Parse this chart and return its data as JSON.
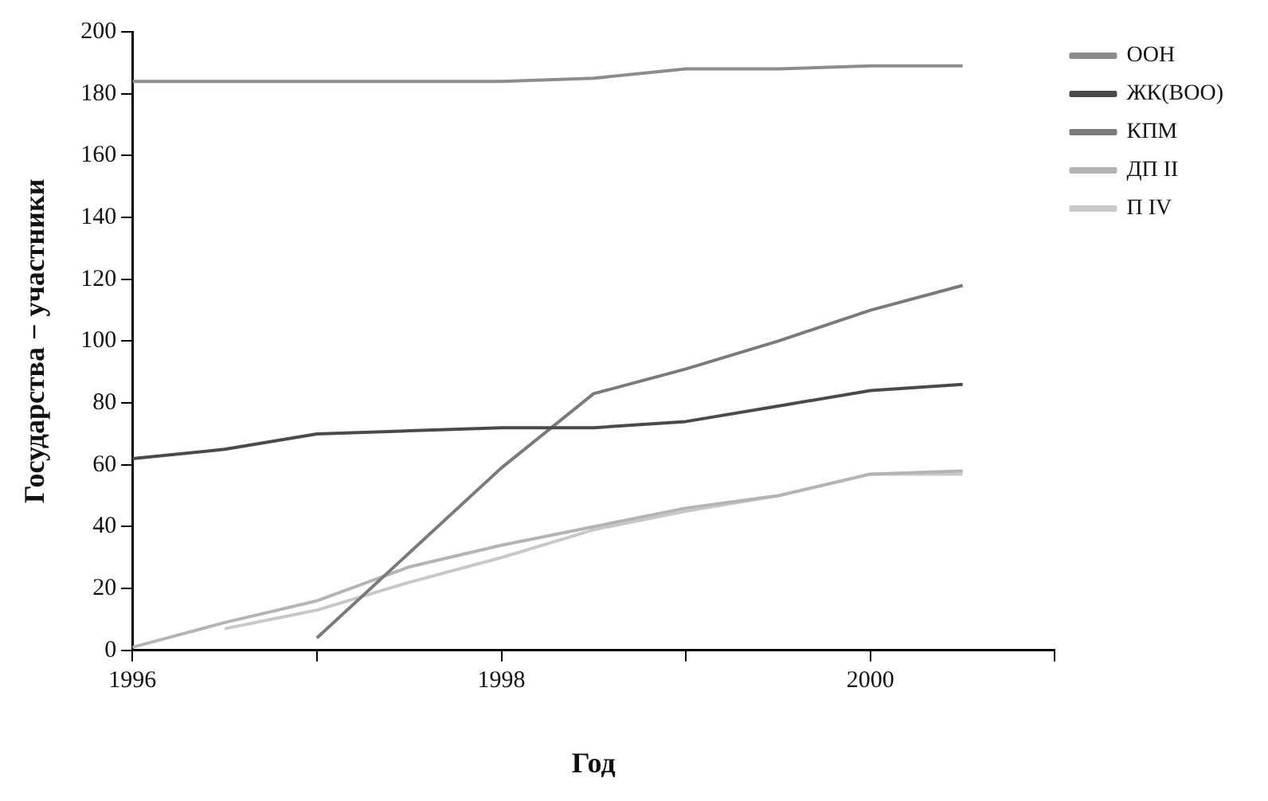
{
  "chart_data": {
    "type": "line",
    "xlabel": "Год",
    "ylabel": "Государства − участники",
    "x": [
      1996,
      1996.5,
      1997,
      1997.5,
      1998,
      1998.5,
      1999,
      1999.5,
      2000,
      2000.5
    ],
    "series": [
      {
        "name": "ООН",
        "color": "#8c8c8c",
        "values": [
          184,
          184,
          184,
          184,
          184,
          185,
          188,
          188,
          189,
          189
        ]
      },
      {
        "name": "ЖК(ВОО)",
        "color": "#4a4a4a",
        "values": [
          62,
          65,
          70,
          71,
          72,
          72,
          74,
          79,
          84,
          86
        ]
      },
      {
        "name": "КПМ",
        "color": "#7a7a7a",
        "x": [
          1997,
          1998,
          1998.5,
          1999,
          1999.5,
          2000,
          2000.5
        ],
        "values": [
          4,
          59,
          83,
          91,
          100,
          110,
          118
        ]
      },
      {
        "name": "ДП II",
        "color": "#b4b4b4",
        "values": [
          1,
          9,
          16,
          27,
          34,
          40,
          46,
          50,
          57,
          58
        ]
      },
      {
        "name": "П IV",
        "color": "#c8c8c8",
        "x": [
          1996.5,
          1997,
          1997.5,
          1998,
          1998.5,
          1999,
          1999.5,
          2000,
          2000.5
        ],
        "values": [
          7,
          13,
          22,
          30,
          39,
          45,
          50,
          57,
          57
        ]
      }
    ],
    "xlim": [
      1996,
      2001
    ],
    "xticks": [
      1996,
      {
        "value": 1997,
        "label": null
      },
      1998,
      {
        "value": 1999,
        "label": null
      },
      2000,
      {
        "value": 2001,
        "label": null
      }
    ],
    "ylim": [
      0,
      200
    ],
    "yticks": [
      0,
      20,
      40,
      60,
      80,
      100,
      120,
      140,
      160,
      180,
      200
    ],
    "grid": false,
    "legend": "top right",
    "marker": "none",
    "line_style": "solid"
  }
}
